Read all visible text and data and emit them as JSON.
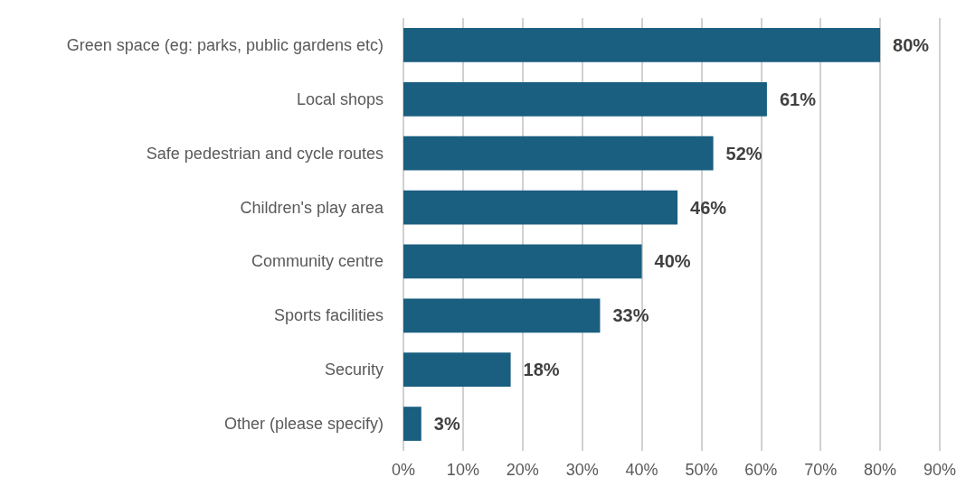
{
  "chart_data": {
    "type": "bar",
    "orientation": "horizontal",
    "categories": [
      "Green space (eg: parks, public gardens etc)",
      "Local shops",
      "Safe pedestrian and cycle routes",
      "Children's play area",
      "Community centre",
      "Sports facilities",
      "Security",
      "Other (please specify)"
    ],
    "values": [
      80,
      61,
      52,
      46,
      40,
      33,
      18,
      3
    ],
    "value_labels": [
      "80%",
      "61%",
      "52%",
      "46%",
      "40%",
      "33%",
      "18%",
      "3%"
    ],
    "color": "#1a5e80",
    "xlim": [
      0,
      90
    ],
    "xticks": [
      {
        "value": 0,
        "label": "0%"
      },
      {
        "value": 10,
        "label": "10%"
      },
      {
        "value": 20,
        "label": "20%"
      },
      {
        "value": 30,
        "label": "30%"
      },
      {
        "value": 40,
        "label": "40%"
      },
      {
        "value": 50,
        "label": "50%"
      },
      {
        "value": 60,
        "label": "60%"
      },
      {
        "value": 70,
        "label": "70%"
      },
      {
        "value": 80,
        "label": "80%"
      },
      {
        "value": 90,
        "label": "90%"
      }
    ],
    "grid": "x"
  }
}
